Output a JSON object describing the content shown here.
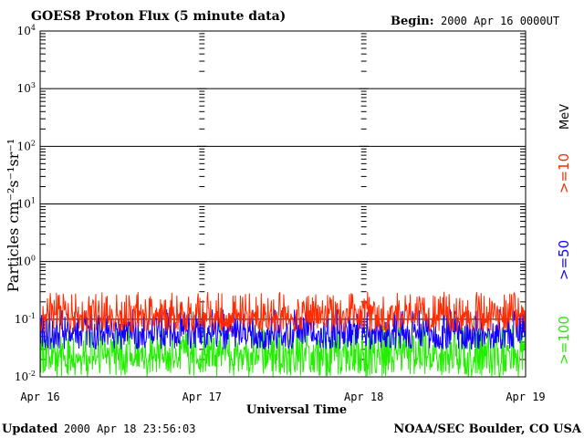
{
  "header": {
    "title": "GOES8 Proton Flux (5 minute data)",
    "begin_label": "Begin:",
    "begin_value": "2000 Apr 16 0000UT"
  },
  "footer": {
    "updated_label": "Updated",
    "updated_value": "2000 Apr 18 23:56:03",
    "credit": "NOAA/SEC Boulder, CO USA"
  },
  "chart_data": {
    "type": "line",
    "title": "GOES8 Proton Flux (5 minute data)",
    "xlabel": "Universal Time",
    "ylabel": "Particles cm⁻²s⁻¹sr⁻¹",
    "yscale": "log",
    "ylim": [
      0.01,
      10000
    ],
    "xlim": [
      "2000-04-16 00:00",
      "2000-04-19 00:00"
    ],
    "x_tick_labels": [
      "Apr 16",
      "Apr 17",
      "Apr 18",
      "Apr 19"
    ],
    "y_tick_labels": [
      {
        "base": "10",
        "exp": "-2"
      },
      {
        "base": "10",
        "exp": "-1"
      },
      {
        "base": "10",
        "exp": "0"
      },
      {
        "base": "10",
        "exp": "1"
      },
      {
        "base": "10",
        "exp": "2"
      },
      {
        "base": "10",
        "exp": "3"
      },
      {
        "base": "10",
        "exp": "4"
      }
    ],
    "grid": "horizontal at each decade",
    "legend_placement": "right, vertical text",
    "unit_label": "MeV",
    "series": [
      {
        "name": ">=10",
        "color": "#ff2a00",
        "typical_range": [
          0.06,
          0.3
        ],
        "median": 0.12
      },
      {
        "name": ">=50",
        "color": "#1400ff",
        "typical_range": [
          0.03,
          0.15
        ],
        "median": 0.06
      },
      {
        "name": ">=100",
        "color": "#22ee00",
        "typical_range": [
          0.01,
          0.08
        ],
        "median": 0.025
      }
    ]
  }
}
